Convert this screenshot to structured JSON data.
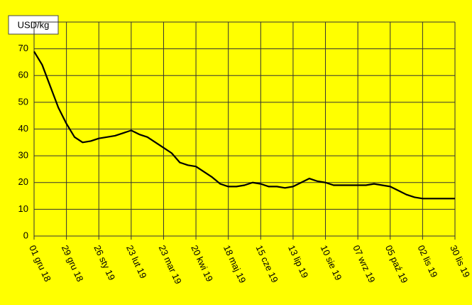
{
  "chart_data": {
    "type": "line",
    "y_label": "USD/kg",
    "categories": [
      "01 gru 18",
      null,
      null,
      null,
      "29 gru 18",
      null,
      null,
      null,
      "26 sty 19",
      null,
      null,
      null,
      "23 lut 19",
      null,
      null,
      null,
      "23 mar 19",
      null,
      null,
      null,
      "20 kwi 19",
      null,
      null,
      null,
      "18 maj 19",
      null,
      null,
      null,
      "15 cze 19",
      null,
      null,
      null,
      "13 lip 19",
      null,
      null,
      null,
      "10 sie 19",
      null,
      null,
      null,
      "07 wrz 19",
      null,
      null,
      null,
      "05 paź 19",
      null,
      null,
      null,
      "02 lis 19",
      null,
      null,
      null,
      "30 lis 19"
    ],
    "values": [
      69,
      64,
      56,
      48,
      42,
      37,
      35,
      35.5,
      36.5,
      37,
      37.5,
      38.5,
      39.5,
      38,
      37,
      35,
      33,
      31,
      27.5,
      26.5,
      26,
      24,
      22,
      19.5,
      18.5,
      18.5,
      19,
      20,
      19.5,
      18.5,
      18.5,
      18,
      18.5,
      20,
      21.5,
      20.5,
      20,
      19,
      19,
      19,
      19,
      19,
      19.5,
      19,
      18.5,
      17,
      15.5,
      14.5,
      14,
      14,
      14,
      14,
      14
    ],
    "color": "#000000",
    "ylim": [
      0,
      80
    ],
    "yticks": [
      0,
      10,
      20,
      30,
      40,
      50,
      60,
      70
    ],
    "grid": true
  }
}
